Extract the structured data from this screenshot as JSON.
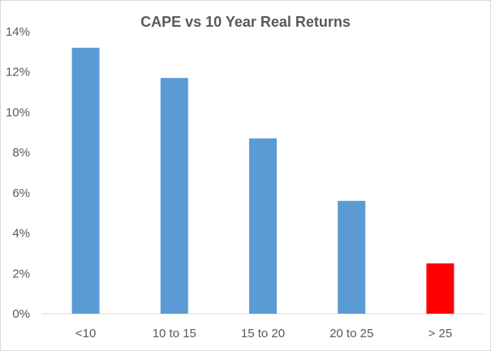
{
  "chart_data": {
    "type": "bar",
    "title": "CAPE vs 10 Year Real Returns",
    "categories": [
      "<10",
      "10 to 15",
      "15 to 20",
      "20 to 25",
      "> 25"
    ],
    "values": [
      13.2,
      11.7,
      8.7,
      5.6,
      2.5
    ],
    "bar_colors": [
      "#5b9bd5",
      "#5b9bd5",
      "#5b9bd5",
      "#5b9bd5",
      "#ff0000"
    ],
    "y_ticks": [
      "0%",
      "2%",
      "4%",
      "6%",
      "8%",
      "10%",
      "12%",
      "14%"
    ],
    "ylim": [
      0,
      14
    ],
    "y_unit": "percent",
    "grid": false,
    "legend": "none"
  }
}
